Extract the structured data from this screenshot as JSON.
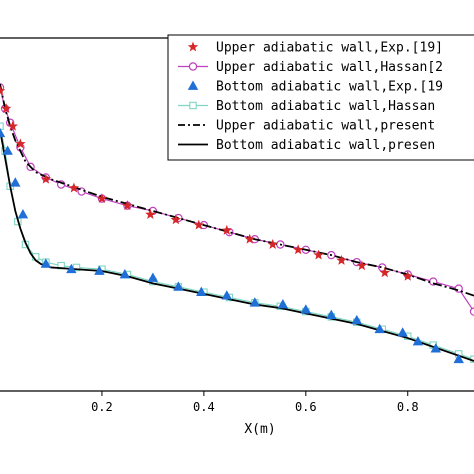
{
  "chart_data": {
    "type": "line",
    "xlabel": "X(m)",
    "ylabel": "",
    "xlim": [
      0.0,
      0.93
    ],
    "ylim": [
      0.0,
      1.0
    ],
    "x_ticks": [
      "0.2",
      "0.4",
      "0.6",
      "0.8"
    ],
    "x_tick_values": [
      0.2,
      0.4,
      0.6,
      0.8
    ],
    "grid": false,
    "legend_position": "top-right",
    "series": [
      {
        "name": "Upper adiabatic wall,Exp.[19]",
        "style": "star-marker",
        "color": "#d62728",
        "x": [
          0.0,
          0.012,
          0.025,
          0.04,
          0.09,
          0.145,
          0.2,
          0.25,
          0.295,
          0.345,
          0.39,
          0.445,
          0.49,
          0.535,
          0.585,
          0.625,
          0.67,
          0.71,
          0.755,
          0.8
        ],
        "y": [
          0.85,
          0.8,
          0.75,
          0.7,
          0.6,
          0.575,
          0.545,
          0.525,
          0.5,
          0.485,
          0.47,
          0.455,
          0.43,
          0.415,
          0.4,
          0.385,
          0.37,
          0.355,
          0.335,
          0.325
        ]
      },
      {
        "name": "Upper adiabatic wall,Hassan[2",
        "style": "line-circle-marker",
        "color": "#bf3fbf",
        "x": [
          0.0,
          0.01,
          0.02,
          0.04,
          0.06,
          0.09,
          0.12,
          0.16,
          0.2,
          0.25,
          0.3,
          0.35,
          0.4,
          0.45,
          0.5,
          0.55,
          0.6,
          0.65,
          0.7,
          0.75,
          0.8,
          0.85,
          0.9,
          0.93
        ],
        "y": [
          0.86,
          0.8,
          0.76,
          0.69,
          0.635,
          0.605,
          0.585,
          0.565,
          0.545,
          0.525,
          0.51,
          0.49,
          0.47,
          0.45,
          0.43,
          0.415,
          0.4,
          0.385,
          0.365,
          0.35,
          0.33,
          0.31,
          0.29,
          0.225
        ]
      },
      {
        "name": "Bottom adiabatic wall,Exp.[19",
        "style": "triangle-marker",
        "color": "#1f6fd6",
        "x": [
          0.0,
          0.015,
          0.03,
          0.045,
          0.09,
          0.14,
          0.195,
          0.245,
          0.3,
          0.35,
          0.395,
          0.445,
          0.5,
          0.555,
          0.6,
          0.65,
          0.7,
          0.745,
          0.79,
          0.82,
          0.855,
          0.9
        ],
        "y": [
          0.73,
          0.68,
          0.59,
          0.5,
          0.36,
          0.345,
          0.34,
          0.33,
          0.32,
          0.295,
          0.28,
          0.27,
          0.25,
          0.245,
          0.23,
          0.215,
          0.2,
          0.175,
          0.165,
          0.14,
          0.12,
          0.09
        ]
      },
      {
        "name": "Bottom adiabatic wall,Hassan",
        "style": "line-square-marker",
        "color": "#7fd6c2",
        "x": [
          0.0,
          0.01,
          0.02,
          0.035,
          0.05,
          0.07,
          0.09,
          0.12,
          0.15,
          0.2,
          0.25,
          0.3,
          0.35,
          0.4,
          0.45,
          0.5,
          0.55,
          0.6,
          0.65,
          0.7,
          0.75,
          0.8,
          0.85,
          0.9,
          0.93
        ],
        "y": [
          0.75,
          0.68,
          0.58,
          0.48,
          0.415,
          0.38,
          0.365,
          0.355,
          0.35,
          0.345,
          0.33,
          0.31,
          0.295,
          0.28,
          0.265,
          0.25,
          0.24,
          0.225,
          0.21,
          0.195,
          0.175,
          0.155,
          0.13,
          0.105,
          0.09
        ]
      },
      {
        "name": "Upper adiabatic wall,present",
        "style": "dash-dot-line",
        "color": "#000000",
        "x": [
          0.0,
          0.01,
          0.02,
          0.03,
          0.05,
          0.07,
          0.1,
          0.13,
          0.17,
          0.2,
          0.25,
          0.3,
          0.35,
          0.4,
          0.45,
          0.5,
          0.55,
          0.6,
          0.65,
          0.7,
          0.75,
          0.8,
          0.85,
          0.9,
          0.93
        ],
        "y": [
          0.87,
          0.8,
          0.75,
          0.71,
          0.65,
          0.62,
          0.6,
          0.585,
          0.565,
          0.55,
          0.53,
          0.51,
          0.49,
          0.47,
          0.45,
          0.43,
          0.415,
          0.4,
          0.385,
          0.365,
          0.35,
          0.33,
          0.305,
          0.285,
          0.27
        ]
      },
      {
        "name": "Bottom adiabatic wall,presen",
        "style": "solid-line",
        "color": "#000000",
        "x": [
          0.0,
          0.01,
          0.02,
          0.03,
          0.04,
          0.05,
          0.06,
          0.07,
          0.08,
          0.1,
          0.12,
          0.15,
          0.2,
          0.25,
          0.3,
          0.35,
          0.4,
          0.45,
          0.5,
          0.55,
          0.6,
          0.65,
          0.7,
          0.75,
          0.8,
          0.85,
          0.9,
          0.93
        ],
        "y": [
          0.74,
          0.66,
          0.58,
          0.51,
          0.46,
          0.42,
          0.39,
          0.37,
          0.36,
          0.35,
          0.348,
          0.345,
          0.34,
          0.325,
          0.305,
          0.29,
          0.275,
          0.26,
          0.245,
          0.235,
          0.22,
          0.205,
          0.19,
          0.17,
          0.15,
          0.125,
          0.1,
          0.085
        ]
      }
    ]
  }
}
